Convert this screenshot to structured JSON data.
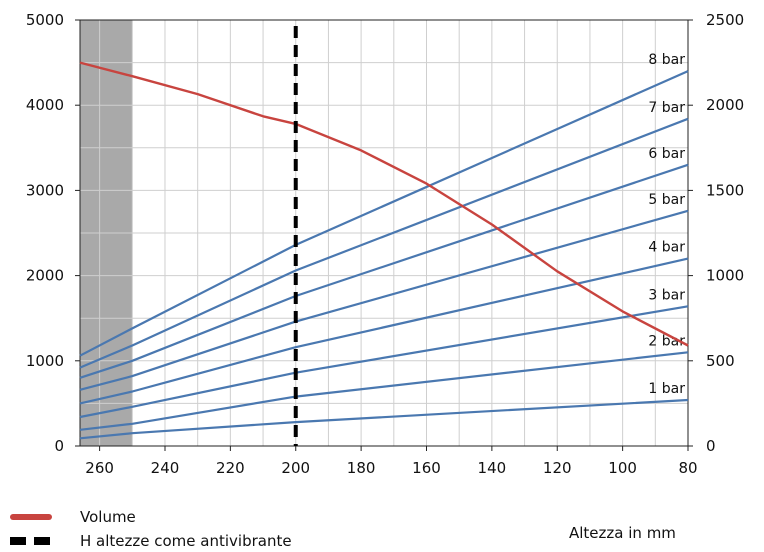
{
  "chart_data": {
    "type": "line",
    "x_ticks": [
      260,
      240,
      220,
      200,
      180,
      160,
      140,
      120,
      100,
      80
    ],
    "xlim": [
      266,
      80
    ],
    "y_left_ticks": [
      0,
      1000,
      2000,
      3000,
      4000,
      5000
    ],
    "ylim_left": [
      0,
      5000
    ],
    "y_right_ticks": [
      0,
      500,
      1000,
      1500,
      2000,
      2500
    ],
    "ylim_right": [
      0,
      2500
    ],
    "grid": true,
    "xlabel": "Altezza in mm",
    "shaded_band": {
      "from": 266,
      "to": 250,
      "color": "#9a9a9a"
    },
    "marker_line": {
      "x": 200,
      "label": "H altezze come antivibrante"
    },
    "volume_series": {
      "name": "Volume",
      "color": "#c8443f",
      "axis": "left",
      "points": [
        [
          266,
          4500
        ],
        [
          250,
          4340
        ],
        [
          230,
          4130
        ],
        [
          210,
          3870
        ],
        [
          200,
          3780
        ],
        [
          180,
          3470
        ],
        [
          160,
          3080
        ],
        [
          140,
          2600
        ],
        [
          120,
          2050
        ],
        [
          100,
          1580
        ],
        [
          80,
          1180
        ]
      ]
    },
    "pressure_series_color": "#4a78b0",
    "pressure_series": [
      {
        "name": "1 bar",
        "axis": "right",
        "points": [
          [
            266,
            45
          ],
          [
            250,
            75
          ],
          [
            200,
            140
          ],
          [
            80,
            270
          ]
        ]
      },
      {
        "name": "2 bar",
        "axis": "right",
        "points": [
          [
            266,
            95
          ],
          [
            250,
            130
          ],
          [
            200,
            290
          ],
          [
            80,
            550
          ]
        ]
      },
      {
        "name": "3 bar",
        "axis": "right",
        "points": [
          [
            266,
            170
          ],
          [
            250,
            230
          ],
          [
            200,
            430
          ],
          [
            80,
            820
          ]
        ]
      },
      {
        "name": "4 bar",
        "axis": "right",
        "points": [
          [
            266,
            250
          ],
          [
            250,
            320
          ],
          [
            200,
            580
          ],
          [
            80,
            1100
          ]
        ]
      },
      {
        "name": "5 bar",
        "axis": "right",
        "points": [
          [
            266,
            330
          ],
          [
            250,
            410
          ],
          [
            200,
            730
          ],
          [
            80,
            1380
          ]
        ]
      },
      {
        "name": "6 bar",
        "axis": "right",
        "points": [
          [
            266,
            400
          ],
          [
            250,
            500
          ],
          [
            200,
            880
          ],
          [
            80,
            1650
          ]
        ]
      },
      {
        "name": "7 bar",
        "axis": "right",
        "points": [
          [
            266,
            460
          ],
          [
            250,
            590
          ],
          [
            200,
            1030
          ],
          [
            80,
            1920
          ]
        ]
      },
      {
        "name": "8 bar",
        "axis": "right",
        "points": [
          [
            266,
            530
          ],
          [
            250,
            690
          ],
          [
            200,
            1180
          ],
          [
            80,
            2200
          ]
        ]
      }
    ]
  },
  "legend": {
    "volume_label": "Volume",
    "dash_label": "H altezze come antivibrante"
  },
  "axis_title": "Altezza in mm"
}
